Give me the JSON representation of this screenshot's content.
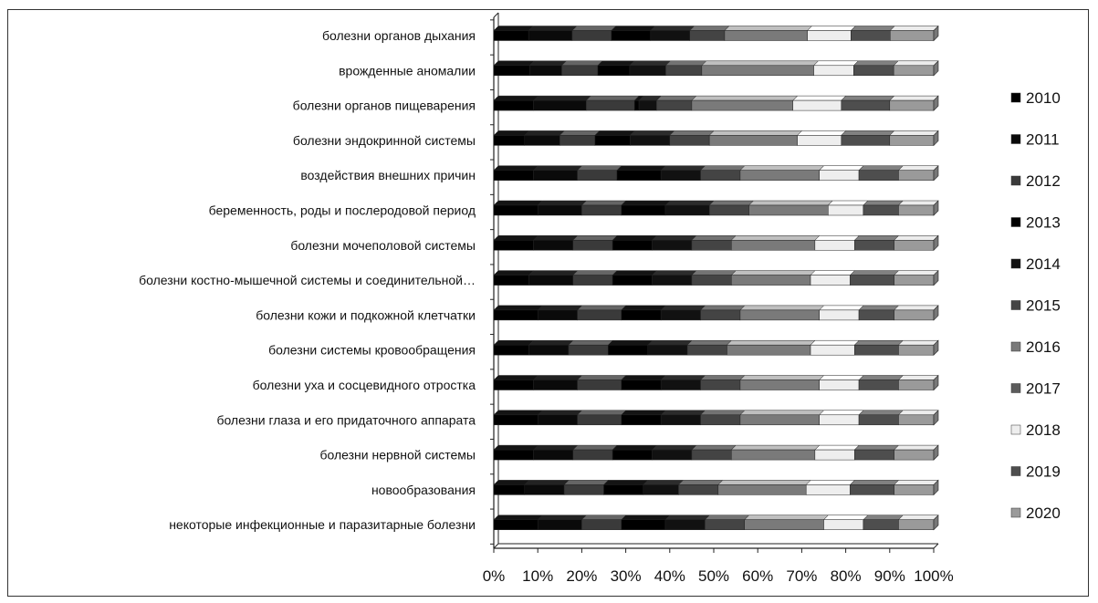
{
  "chart_data": {
    "type": "bar",
    "orientation": "horizontal",
    "stacked": "percent",
    "title": "",
    "xlabel": "",
    "ylabel": "",
    "xlim": [
      0,
      100
    ],
    "x_tick_labels": [
      "0%",
      "10%",
      "20%",
      "30%",
      "40%",
      "50%",
      "60%",
      "70%",
      "80%",
      "90%",
      "100%"
    ],
    "grid": false,
    "legend_position": "right",
    "categories": [
      "болезни органов дыхания",
      "врожденные аномалии",
      "болезни органов пищеварения",
      "болезни эндокринной системы",
      "воздействия внешних причин",
      "беременность, роды и послеродовой период",
      "болезни мочеполовой системы",
      "болезни костно-мышечной системы и соединительной…",
      "болезни кожи и подкожной клетчатки",
      "болезни системы кровообращения",
      "болезни уха и сосцевидного отростка",
      "болезни глаза и его придаточного аппарата",
      "болезни нервной системы",
      "новообразования",
      "некоторые инфекционные и паразитарные болезни"
    ],
    "series": [
      {
        "name": "2010",
        "color": "#000000",
        "values": [
          8,
          9,
          9,
          7,
          9,
          10,
          9,
          8,
          10,
          8,
          9,
          10,
          9,
          7,
          10
        ]
      },
      {
        "name": "2011",
        "color": "#0a0a0a",
        "values": [
          10,
          8,
          12,
          8,
          10,
          10,
          9,
          10,
          9,
          9,
          10,
          9,
          9,
          9,
          10
        ]
      },
      {
        "name": "2012",
        "color": "#3a3a3a",
        "values": [
          9,
          9,
          11,
          8,
          9,
          9,
          9,
          9,
          10,
          9,
          10,
          10,
          9,
          9,
          9
        ]
      },
      {
        "name": "2013",
        "color": "#000000",
        "values": [
          9,
          8,
          1,
          8,
          10,
          10,
          9,
          9,
          9,
          9,
          9,
          9,
          9,
          9,
          10
        ]
      },
      {
        "name": "2014",
        "color": "#111111",
        "values": [
          9,
          9,
          4,
          9,
          9,
          10,
          9,
          9,
          9,
          9,
          9,
          9,
          9,
          8,
          9
        ]
      },
      {
        "name": "2015",
        "color": "#444444",
        "values": [
          8,
          9,
          8,
          9,
          9,
          9,
          9,
          9,
          9,
          9,
          9,
          9,
          9,
          9,
          9
        ]
      },
      {
        "name": "2016",
        "color": "#7a7a7a",
        "values": [
          19,
          28,
          23,
          20,
          18,
          18,
          19,
          18,
          18,
          19,
          18,
          18,
          19,
          20,
          18
        ]
      },
      {
        "name": "2017",
        "color": "#5c5c5c",
        "values": [
          0,
          0,
          0,
          0,
          0,
          0,
          0,
          0,
          0,
          0,
          0,
          0,
          0,
          0,
          0
        ]
      },
      {
        "name": "2018",
        "color": "#eeeeee",
        "values": [
          10,
          10,
          11,
          10,
          9,
          8,
          9,
          9,
          9,
          10,
          9,
          9,
          9,
          10,
          9
        ]
      },
      {
        "name": "2019",
        "color": "#4e4e4e",
        "values": [
          9,
          10,
          11,
          11,
          9,
          8,
          9,
          10,
          8,
          10,
          9,
          9,
          9,
          10,
          8
        ]
      },
      {
        "name": "2020",
        "color": "#9a9a9a",
        "values": [
          10,
          10,
          10,
          10,
          8,
          8,
          9,
          9,
          9,
          8,
          8,
          8,
          9,
          9,
          8
        ]
      }
    ]
  }
}
